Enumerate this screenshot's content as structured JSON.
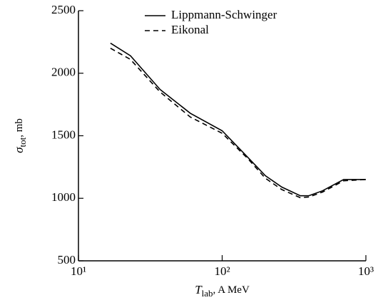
{
  "chart_data": {
    "type": "line",
    "ylabel": {
      "symbol": "σ",
      "subscript": "tot",
      "rest": ", mb"
    },
    "xlabel": {
      "symbol": "T",
      "subscript": "lab",
      "rest": ", A MeV"
    },
    "x": [
      16.7,
      23,
      37,
      60,
      100,
      150,
      200,
      260,
      350,
      400,
      500,
      700,
      1000
    ],
    "series": [
      {
        "name": "Lippmann-Schwinger",
        "color": "#000000",
        "dash": "solid",
        "values": [
          2240,
          2140,
          1870,
          1680,
          1540,
          1330,
          1180,
          1090,
          1020,
          1020,
          1060,
          1150,
          1150
        ]
      },
      {
        "name": "Eikonal",
        "color": "#000000",
        "dash": "dashed",
        "values": [
          2200,
          2110,
          1850,
          1650,
          1520,
          1320,
          1160,
          1070,
          1005,
          1010,
          1050,
          1140,
          1150
        ]
      }
    ],
    "xlog": true,
    "xlim": [
      10,
      1000
    ],
    "xticks": [
      {
        "value": 10,
        "label": "10¹"
      },
      {
        "value": 100,
        "label": "10²"
      },
      {
        "value": 1000,
        "label": "10³"
      }
    ],
    "ylim": [
      500,
      2500
    ],
    "yticks": [
      500,
      1000,
      1500,
      2000,
      2500
    ],
    "legend": "top"
  }
}
